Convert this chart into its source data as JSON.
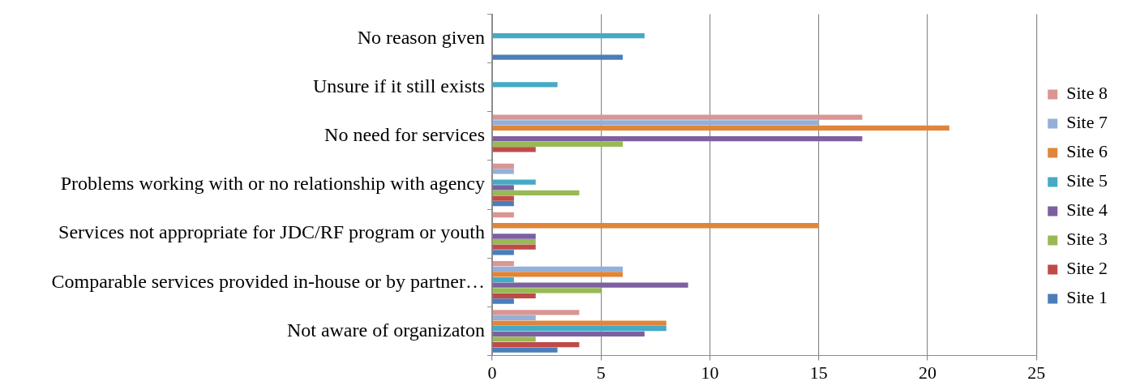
{
  "chart_data": {
    "type": "bar",
    "orientation": "horizontal",
    "categories": [
      "No reason given",
      "Unsure if it still exists",
      "No need for services",
      "Problems working with or no relationship with agency",
      "Services not appropriate for JDC/RF program or youth",
      "Comparable services provided in-house or by partner…",
      "Not aware of organizaton"
    ],
    "series": [
      {
        "name": "Site 1",
        "color": "#4a7ebb",
        "values": [
          6,
          0,
          0,
          1,
          1,
          1,
          3
        ]
      },
      {
        "name": "Site 2",
        "color": "#be4b48",
        "values": [
          0,
          0,
          2,
          1,
          2,
          2,
          4
        ]
      },
      {
        "name": "Site 3",
        "color": "#98b954",
        "values": [
          0,
          0,
          6,
          4,
          2,
          5,
          2
        ]
      },
      {
        "name": "Site 4",
        "color": "#7d60a0",
        "values": [
          0,
          0,
          17,
          1,
          2,
          9,
          7
        ]
      },
      {
        "name": "Site 5",
        "color": "#46aac5",
        "values": [
          7,
          3,
          0,
          2,
          0,
          1,
          8
        ]
      },
      {
        "name": "Site 6",
        "color": "#e0853a",
        "values": [
          0,
          0,
          21,
          0,
          15,
          6,
          8
        ]
      },
      {
        "name": "Site 7",
        "color": "#94b0d8",
        "values": [
          0,
          0,
          15,
          1,
          0,
          6,
          2
        ]
      },
      {
        "name": "Site 8",
        "color": "#d99694",
        "values": [
          0,
          0,
          17,
          1,
          1,
          1,
          4
        ]
      }
    ],
    "xlim": [
      0,
      25
    ],
    "xticks": [
      0,
      5,
      10,
      15,
      20,
      25
    ],
    "grid": "x",
    "legend": "right"
  }
}
